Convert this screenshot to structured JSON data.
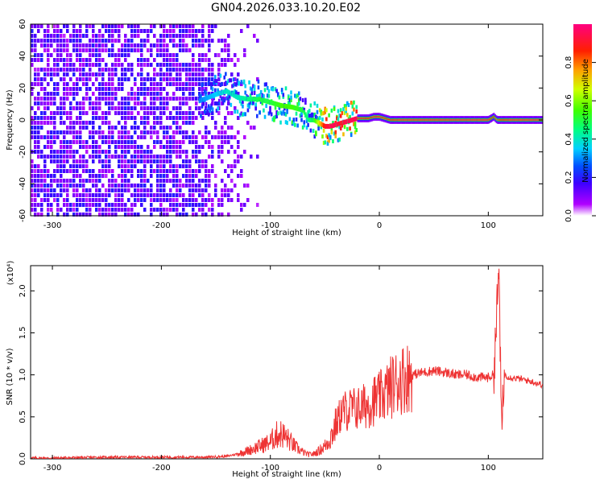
{
  "figure": {
    "title": "GN04.2026.033.10.20.E02"
  },
  "chart_data": [
    {
      "type": "heatmap",
      "xlabel": "Height of straight line (km)",
      "ylabel": "Frequency (Hz)",
      "xlim": [
        -320,
        150
      ],
      "ylim": [
        -60,
        60
      ],
      "x_ticks": [
        -300,
        -200,
        -100,
        0,
        100
      ],
      "y_ticks": [
        -60,
        -40,
        -20,
        0,
        20,
        40,
        60
      ],
      "colorbar": {
        "label": "Normalized spectral amplitude",
        "range": [
          0,
          1
        ],
        "ticks": [
          "0.0",
          "0.2",
          "0.4",
          "0.6",
          "0.8"
        ],
        "colormap": [
          "#ffffff",
          "#b000ff",
          "#4000ff",
          "#0000ff",
          "#00a0ff",
          "#00ffff",
          "#00ff40",
          "#80ff00",
          "#ffff00",
          "#ff8000",
          "#ff0000",
          "#ff0080"
        ]
      },
      "ridge": {
        "x": [
          -165,
          -150,
          -140,
          -130,
          -120,
          -110,
          -100,
          -90,
          -80,
          -70,
          -65,
          -60,
          -55,
          -50,
          -45,
          -40,
          -35,
          -30,
          -20,
          -10,
          -5,
          0,
          10,
          20,
          40,
          60,
          80,
          100,
          105,
          108,
          112,
          120,
          150
        ],
        "freq": [
          12,
          16,
          18,
          14,
          13,
          13,
          11,
          9,
          8,
          6,
          0,
          0,
          -2,
          -4,
          -4,
          -3,
          -2,
          -1,
          1,
          1,
          2,
          2,
          0,
          0,
          0,
          0,
          0,
          0,
          2,
          0,
          0,
          0,
          0
        ],
        "amplitude": [
          0.3,
          0.35,
          0.4,
          0.4,
          0.45,
          0.5,
          0.5,
          0.55,
          0.55,
          0.5,
          0.45,
          0.5,
          0.7,
          0.9,
          0.95,
          0.95,
          0.9,
          0.95,
          0.95,
          0.9,
          0.95,
          0.95,
          0.9,
          0.95,
          0.95,
          0.95,
          0.95,
          0.95,
          0.85,
          0.8,
          0.9,
          0.95,
          0.95
        ]
      }
    },
    {
      "type": "line",
      "xlabel": "Height of straight line (km)",
      "ylabel": "SNR (10 * v/v)",
      "y_multiplier": "(x10⁴)",
      "xlim": [
        -320,
        150
      ],
      "ylim": [
        0,
        2.3
      ],
      "x_ticks": [
        -300,
        -200,
        -100,
        0,
        100
      ],
      "y_ticks": [
        "0.0",
        "0.5",
        "1.0",
        "1.5",
        "2.0"
      ],
      "color": "#ee3333",
      "series": [
        {
          "x": [
            -320,
            -300,
            -250,
            -200,
            -160,
            -140,
            -130,
            -120,
            -110,
            -100,
            -95,
            -90,
            -85,
            -80,
            -75,
            -70,
            -65,
            -60,
            -55,
            -50,
            -45,
            -40,
            -35,
            -30,
            -25,
            -20,
            -15,
            -10,
            -5,
            0,
            5,
            10,
            20,
            30,
            40,
            50,
            60,
            70,
            80,
            90,
            100,
            105,
            108,
            110,
            112,
            115,
            120,
            130,
            140,
            150
          ],
          "values": [
            0.01,
            0.01,
            0.02,
            0.02,
            0.02,
            0.03,
            0.06,
            0.1,
            0.15,
            0.2,
            0.28,
            0.3,
            0.25,
            0.18,
            0.12,
            0.08,
            0.05,
            0.06,
            0.1,
            0.15,
            0.25,
            0.4,
            0.55,
            0.58,
            0.6,
            0.6,
            0.62,
            0.65,
            0.7,
            0.72,
            0.78,
            0.85,
            0.95,
            1.0,
            1.03,
            1.05,
            1.03,
            1.0,
            1.0,
            0.97,
            0.97,
            1.0,
            1.8,
            2.25,
            0.3,
            1.0,
            0.97,
            0.95,
            0.92,
            0.88
          ]
        }
      ]
    }
  ]
}
